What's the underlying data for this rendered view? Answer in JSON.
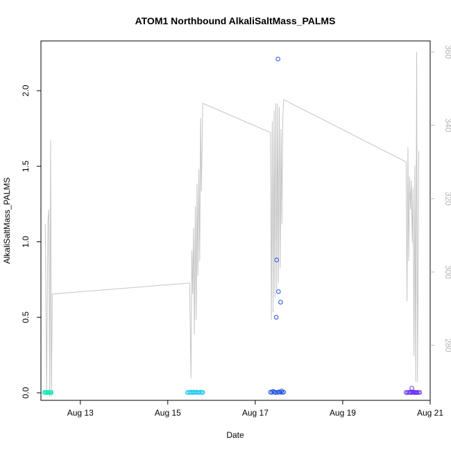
{
  "chart_data": {
    "type": "scatter",
    "title": "ATOM1 Northbound AlkaliSaltMass_PALMS",
    "xlabel": "Date",
    "ylabel": "AlkaliSaltMass_PALMS",
    "xlim": [
      12.1,
      21.0
    ],
    "ylim": [
      -0.05,
      2.33
    ],
    "y2lim": [
      265,
      363
    ],
    "x_ticks": [
      {
        "value": 13,
        "label": "Aug 13"
      },
      {
        "value": 15,
        "label": "Aug 15"
      },
      {
        "value": 17,
        "label": "Aug 17"
      },
      {
        "value": 19,
        "label": "Aug 19"
      },
      {
        "value": 21,
        "label": "Aug 21"
      }
    ],
    "y_ticks": [
      {
        "value": 0.0,
        "label": "0.0"
      },
      {
        "value": 0.5,
        "label": "0.5"
      },
      {
        "value": 1.0,
        "label": "1.0"
      },
      {
        "value": 1.5,
        "label": "1.5"
      },
      {
        "value": 2.0,
        "label": "2.0"
      }
    ],
    "y2_ticks": [
      {
        "value": 280,
        "label": "280"
      },
      {
        "value": 300,
        "label": "300"
      },
      {
        "value": 320,
        "label": "320"
      },
      {
        "value": 340,
        "label": "340"
      },
      {
        "value": 360,
        "label": "360"
      }
    ],
    "colors": {
      "grey_line": "#c4c4c4",
      "right_axis": "#b4b4b4",
      "flight1": "#19e8b3",
      "flight2": "#19c8f0",
      "flight3": "#1d4fe0",
      "flight4": "#6a2ff0"
    },
    "scatter_series": [
      {
        "color_key": "flight1",
        "points": [
          [
            12.18,
            0.003
          ],
          [
            12.2,
            0.002
          ],
          [
            12.22,
            0.004
          ],
          [
            12.24,
            0.002
          ],
          [
            12.26,
            0.003
          ],
          [
            12.28,
            0.002
          ],
          [
            12.3,
            0.003
          ],
          [
            12.32,
            0.002
          ],
          [
            12.34,
            0.003
          ]
        ]
      },
      {
        "color_key": "flight2",
        "points": [
          [
            15.45,
            0.003
          ],
          [
            15.48,
            0.002
          ],
          [
            15.51,
            0.003
          ],
          [
            15.54,
            0.004
          ],
          [
            15.57,
            0.002
          ],
          [
            15.6,
            0.005
          ],
          [
            15.63,
            0.003
          ],
          [
            15.66,
            0.004
          ],
          [
            15.69,
            0.002
          ],
          [
            15.72,
            0.003
          ],
          [
            15.75,
            0.004
          ],
          [
            15.78,
            0.002
          ],
          [
            15.8,
            0.003
          ]
        ]
      },
      {
        "color_key": "flight3",
        "points": [
          [
            17.35,
            0.004
          ],
          [
            17.38,
            0.003
          ],
          [
            17.41,
            0.01
          ],
          [
            17.44,
            0.005
          ],
          [
            17.46,
            0.002
          ],
          [
            17.48,
            0.5
          ],
          [
            17.49,
            0.88
          ],
          [
            17.51,
            0.003
          ],
          [
            17.52,
            2.21
          ],
          [
            17.53,
            0.67
          ],
          [
            17.55,
            0.006
          ],
          [
            17.57,
            0.004
          ],
          [
            17.58,
            0.6
          ],
          [
            17.6,
            0.012
          ],
          [
            17.62,
            0.003
          ],
          [
            17.65,
            0.004
          ]
        ]
      },
      {
        "color_key": "flight4",
        "points": [
          [
            20.45,
            0.003
          ],
          [
            20.48,
            0.002
          ],
          [
            20.51,
            0.003
          ],
          [
            20.54,
            0.004
          ],
          [
            20.56,
            0.002
          ],
          [
            20.58,
            0.03
          ],
          [
            20.6,
            0.003
          ],
          [
            20.62,
            0.004
          ],
          [
            20.64,
            0.002
          ],
          [
            20.66,
            0.003
          ],
          [
            20.68,
            0.002
          ],
          [
            20.7,
            0.003
          ],
          [
            20.73,
            0.002
          ],
          [
            20.76,
            0.003
          ]
        ]
      }
    ],
    "line_series": [
      {
        "color_key": "grey_line",
        "axis": "right",
        "points": [
          [
            12.2,
            313
          ],
          [
            12.23,
            268
          ],
          [
            12.26,
            314
          ],
          [
            12.28,
            317
          ],
          [
            12.3,
            266
          ],
          [
            12.32,
            336
          ],
          [
            12.34,
            266
          ],
          [
            12.36,
            294
          ],
          [
            15.5,
            297
          ],
          [
            15.53,
            271
          ],
          [
            15.55,
            306
          ],
          [
            15.57,
            294
          ],
          [
            15.59,
            312
          ],
          [
            15.61,
            283
          ],
          [
            15.63,
            318
          ],
          [
            15.65,
            287
          ],
          [
            15.67,
            324
          ],
          [
            15.69,
            299
          ],
          [
            15.71,
            328
          ],
          [
            15.73,
            303
          ],
          [
            15.75,
            342
          ],
          [
            15.77,
            322
          ],
          [
            15.8,
            346
          ],
          [
            17.35,
            338
          ],
          [
            17.37,
            287
          ],
          [
            17.39,
            341
          ],
          [
            17.41,
            289
          ],
          [
            17.43,
            344
          ],
          [
            17.45,
            293
          ],
          [
            17.47,
            346
          ],
          [
            17.49,
            295
          ],
          [
            17.51,
            346
          ],
          [
            17.53,
            297
          ],
          [
            17.55,
            345
          ],
          [
            17.57,
            301
          ],
          [
            17.59,
            339
          ],
          [
            17.61,
            313
          ],
          [
            17.63,
            342
          ],
          [
            17.65,
            347
          ],
          [
            20.45,
            330
          ],
          [
            20.47,
            292
          ],
          [
            20.49,
            334
          ],
          [
            20.51,
            303
          ],
          [
            20.53,
            326
          ],
          [
            20.55,
            317
          ],
          [
            20.57,
            325
          ],
          [
            20.59,
            308
          ],
          [
            20.61,
            323
          ],
          [
            20.63,
            277
          ],
          [
            20.65,
            329
          ],
          [
            20.67,
            270
          ],
          [
            20.69,
            360
          ],
          [
            20.71,
            270
          ],
          [
            20.74,
            333
          ]
        ]
      }
    ]
  }
}
